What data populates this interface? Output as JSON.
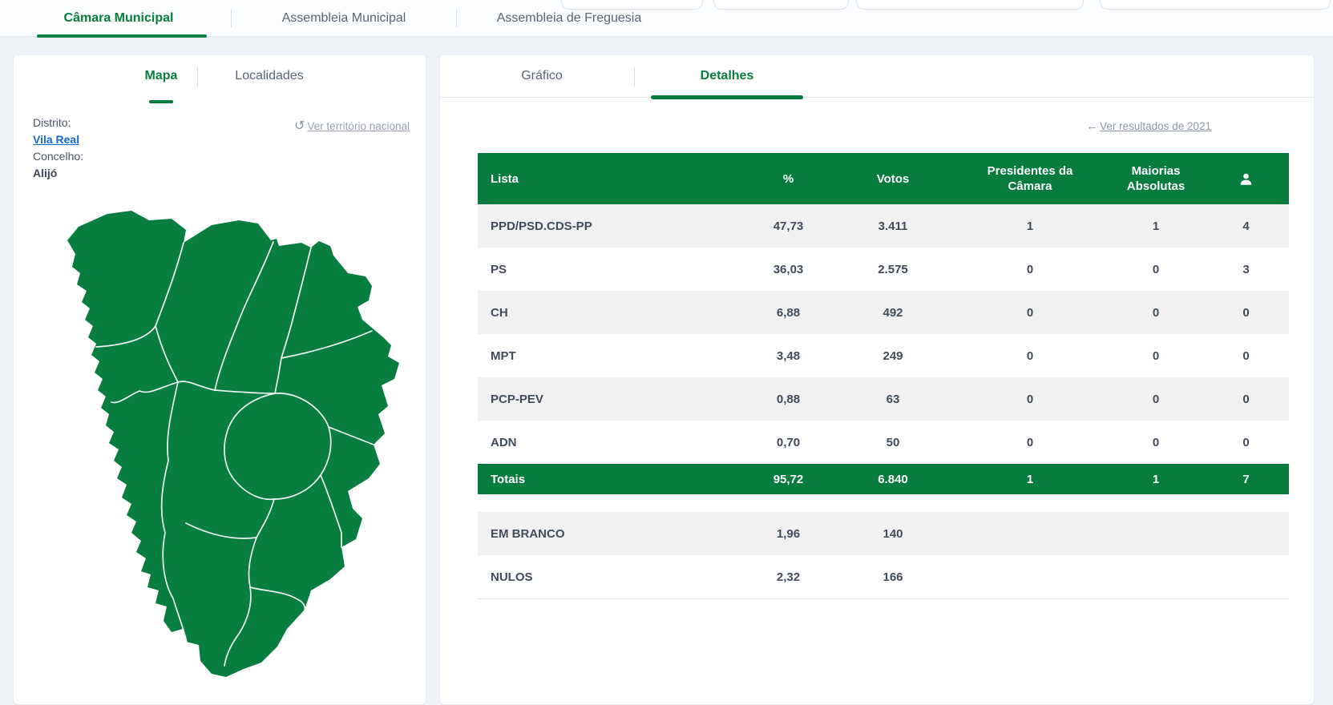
{
  "top_tabs": [
    {
      "label": "Câmara Municipal",
      "active": true
    },
    {
      "label": "Assembleia Municipal",
      "active": false
    },
    {
      "label": "Assembleia de Freguesia",
      "active": false
    }
  ],
  "left_panel": {
    "tabs": {
      "map": "Mapa",
      "localities": "Localidades"
    },
    "district_label": "Distrito:",
    "district_value": "Vila Real",
    "council_label": "Concelho:",
    "council_value": "Alijó",
    "territory_link": {
      "icon_glyph": "↺",
      "label": "Ver território nacional"
    }
  },
  "right_panel": {
    "tabs": {
      "chart": "Gráfico",
      "details": "Detalhes"
    },
    "results_2021_link": {
      "icon_glyph": "←",
      "label": "Ver resultados de 2021"
    },
    "table": {
      "headers": {
        "list": "Lista",
        "percent": "%",
        "votes": "Votos",
        "presidents": "Presidentes da Câmara",
        "majorities": "Maiorias Absolutas",
        "mandates_icon": "person-icon"
      },
      "rows": [
        {
          "list": "PPD/PSD.CDS-PP",
          "pct": "47,73",
          "votes": "3.411",
          "presidents": "1",
          "majorities": "1",
          "mandates": "4"
        },
        {
          "list": "PS",
          "pct": "36,03",
          "votes": "2.575",
          "presidents": "0",
          "majorities": "0",
          "mandates": "3"
        },
        {
          "list": "CH",
          "pct": "6,88",
          "votes": "492",
          "presidents": "0",
          "majorities": "0",
          "mandates": "0"
        },
        {
          "list": "MPT",
          "pct": "3,48",
          "votes": "249",
          "presidents": "0",
          "majorities": "0",
          "mandates": "0"
        },
        {
          "list": "PCP-PEV",
          "pct": "0,88",
          "votes": "63",
          "presidents": "0",
          "majorities": "0",
          "mandates": "0"
        },
        {
          "list": "ADN",
          "pct": "0,70",
          "votes": "50",
          "presidents": "0",
          "majorities": "0",
          "mandates": "0"
        }
      ],
      "totals": {
        "list": "Totais",
        "pct": "95,72",
        "votes": "6.840",
        "presidents": "1",
        "majorities": "1",
        "mandates": "7"
      },
      "other_rows": [
        {
          "list": "EM BRANCO",
          "pct": "1,96",
          "votes": "140"
        },
        {
          "list": "NULOS",
          "pct": "2,32",
          "votes": "166"
        }
      ]
    }
  },
  "colors": {
    "accent_green": "#077c3e",
    "map_green": "#087d40",
    "link_blue": "#1867d2",
    "muted_gray": "#9aa1ad",
    "row_stripe": "#f1f1f2"
  }
}
